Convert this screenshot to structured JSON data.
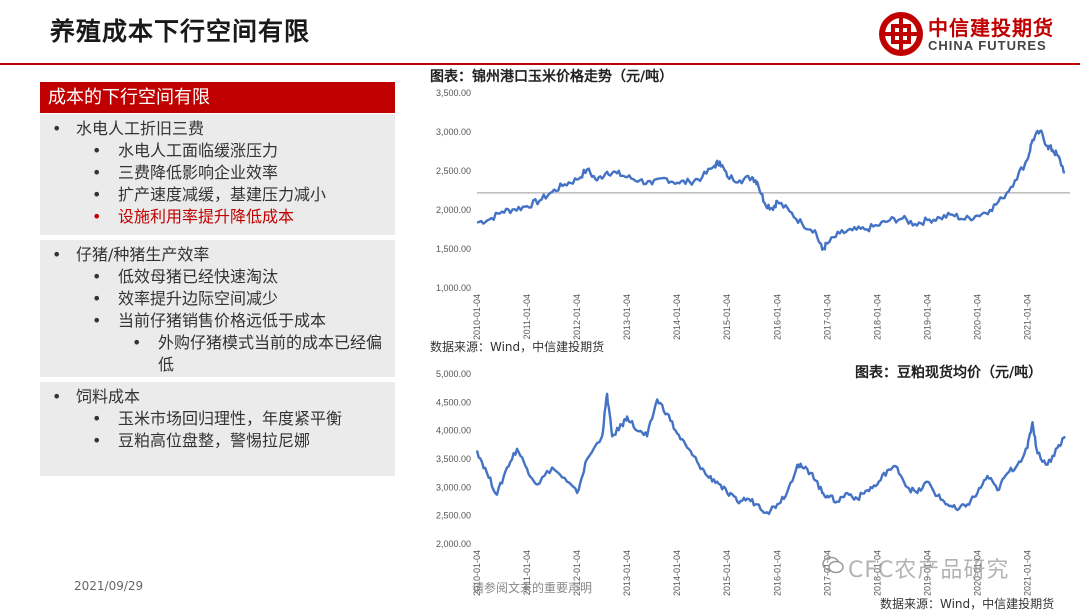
{
  "header": {
    "title": "养殖成本下行空间有限",
    "logo_cn": "中信建投期货",
    "logo_en": "CHINA FUTURES"
  },
  "panel": {
    "heading": "成本的下行空间有限",
    "groups": [
      {
        "items": [
          {
            "level": 0,
            "text": "水电人工折旧三费"
          },
          {
            "level": 1,
            "text": "水电人工面临缓涨压力"
          },
          {
            "level": 1,
            "text": "三费降低影响企业效率"
          },
          {
            "level": 1,
            "text": "扩产速度减缓，基建压力减小"
          },
          {
            "level": 1,
            "text": "设施利用率提升降低成本",
            "highlight": true
          }
        ]
      },
      {
        "items": [
          {
            "level": 0,
            "text": "仔猪/种猪生产效率"
          },
          {
            "level": 1,
            "text": "低效母猪已经快速淘汰"
          },
          {
            "level": 1,
            "text": "效率提升边际空间减少"
          },
          {
            "level": 1,
            "text": "当前仔猪销售价格远低于成本"
          },
          {
            "level": 2,
            "text": "外购仔猪模式当前的成本已经偏低"
          }
        ]
      },
      {
        "items": [
          {
            "level": 0,
            "text": "饲料成本"
          },
          {
            "level": 1,
            "text": "玉米市场回归理性，年度紧平衡"
          },
          {
            "level": 1,
            "text": "豆粕高位盘整，警惕拉尼娜"
          }
        ]
      }
    ]
  },
  "footer": {
    "date": "2021/09/29",
    "notice": "请参阅文末的重要声明",
    "watermark": "CFC农产品研究"
  },
  "colors": {
    "accent": "#c00000",
    "line": "#4472c4",
    "panel_bg": "#ebebeb"
  },
  "chart_data": [
    {
      "type": "line",
      "title": "图表：锦州港口玉米价格走势（元/吨）",
      "source": "数据来源：Wind，中信建投期货",
      "ylim": [
        1000,
        3500
      ],
      "y_ticks": [
        "1,000.00",
        "1,500.00",
        "2,000.00",
        "2,500.00",
        "3,000.00",
        "3,500.00"
      ],
      "x_ticks": [
        "2010-01-04",
        "2011-01-04",
        "2012-01-04",
        "2013-01-04",
        "2014-01-04",
        "2015-01-04",
        "2016-01-04",
        "2017-01-04",
        "2018-01-04",
        "2019-01-04",
        "2020-01-04",
        "2021-01-04"
      ],
      "reference_line": 2220,
      "x": [
        2010.0,
        2010.25,
        2010.5,
        2010.75,
        2011.0,
        2011.25,
        2011.5,
        2011.75,
        2012.0,
        2012.2,
        2012.4,
        2012.6,
        2012.8,
        2013.0,
        2013.25,
        2013.5,
        2013.75,
        2014.0,
        2014.25,
        2014.5,
        2014.75,
        2014.85,
        2015.0,
        2015.25,
        2015.5,
        2015.6,
        2015.75,
        2015.9,
        2016.0,
        2016.25,
        2016.5,
        2016.75,
        2016.9,
        2017.0,
        2017.25,
        2017.5,
        2017.75,
        2018.0,
        2018.25,
        2018.5,
        2018.75,
        2019.0,
        2019.25,
        2019.5,
        2019.75,
        2020.0,
        2020.25,
        2020.5,
        2020.75,
        2021.0,
        2021.1,
        2021.25,
        2021.4,
        2021.5,
        2021.6,
        2021.75
      ],
      "values": [
        1840,
        1880,
        1980,
        2010,
        2050,
        2120,
        2230,
        2330,
        2390,
        2520,
        2380,
        2490,
        2470,
        2420,
        2380,
        2330,
        2410,
        2350,
        2360,
        2420,
        2570,
        2620,
        2430,
        2380,
        2420,
        2360,
        2090,
        2020,
        2110,
        1980,
        1820,
        1740,
        1490,
        1570,
        1700,
        1740,
        1750,
        1800,
        1870,
        1890,
        1820,
        1870,
        1900,
        1940,
        1880,
        1930,
        2000,
        2150,
        2380,
        2650,
        2900,
        3010,
        2820,
        2770,
        2700,
        2480
      ]
    },
    {
      "type": "line",
      "title": "图表：豆粕现货均价（元/吨）",
      "source": "数据来源：Wind，中信建投期货",
      "ylim": [
        2000,
        5000
      ],
      "y_ticks": [
        "2,000.00",
        "2,500.00",
        "3,000.00",
        "3,500.00",
        "4,000.00",
        "4,500.00",
        "5,000.00"
      ],
      "x_ticks": [
        "2010-01-04",
        "2011-01-04",
        "2012-01-04",
        "2013-01-04",
        "2014-01-04",
        "2015-01-04",
        "2016-01-04",
        "2017-01-04",
        "2018-01-04",
        "2019-01-04",
        "2020-01-04",
        "2021-01-04"
      ],
      "x": [
        2010.0,
        2010.2,
        2010.4,
        2010.6,
        2010.8,
        2011.0,
        2011.2,
        2011.5,
        2011.8,
        2012.0,
        2012.2,
        2012.5,
        2012.6,
        2012.7,
        2012.9,
        2013.0,
        2013.2,
        2013.4,
        2013.6,
        2013.8,
        2014.0,
        2014.2,
        2014.4,
        2014.6,
        2014.8,
        2015.0,
        2015.2,
        2015.4,
        2015.6,
        2015.8,
        2016.0,
        2016.2,
        2016.4,
        2016.5,
        2016.7,
        2016.9,
        2017.0,
        2017.2,
        2017.4,
        2017.6,
        2017.8,
        2018.0,
        2018.2,
        2018.4,
        2018.6,
        2018.8,
        2019.0,
        2019.2,
        2019.4,
        2019.6,
        2019.8,
        2020.0,
        2020.2,
        2020.4,
        2020.6,
        2020.8,
        2021.0,
        2021.1,
        2021.2,
        2021.4,
        2021.6,
        2021.75
      ],
      "values": [
        3650,
        3250,
        2870,
        3350,
        3680,
        3330,
        3050,
        3350,
        3100,
        2900,
        3500,
        3900,
        4650,
        3900,
        4100,
        4250,
        4000,
        3900,
        4550,
        4300,
        3950,
        3700,
        3450,
        3200,
        3100,
        2900,
        2750,
        2800,
        2700,
        2560,
        2700,
        2920,
        3400,
        3350,
        3250,
        2900,
        2850,
        2750,
        2900,
        2800,
        2950,
        3050,
        3300,
        3350,
        3000,
        2900,
        3100,
        2850,
        2700,
        2600,
        2700,
        2900,
        3200,
        2950,
        3250,
        3400,
        3700,
        4150,
        3600,
        3400,
        3700,
        3900
      ]
    }
  ]
}
